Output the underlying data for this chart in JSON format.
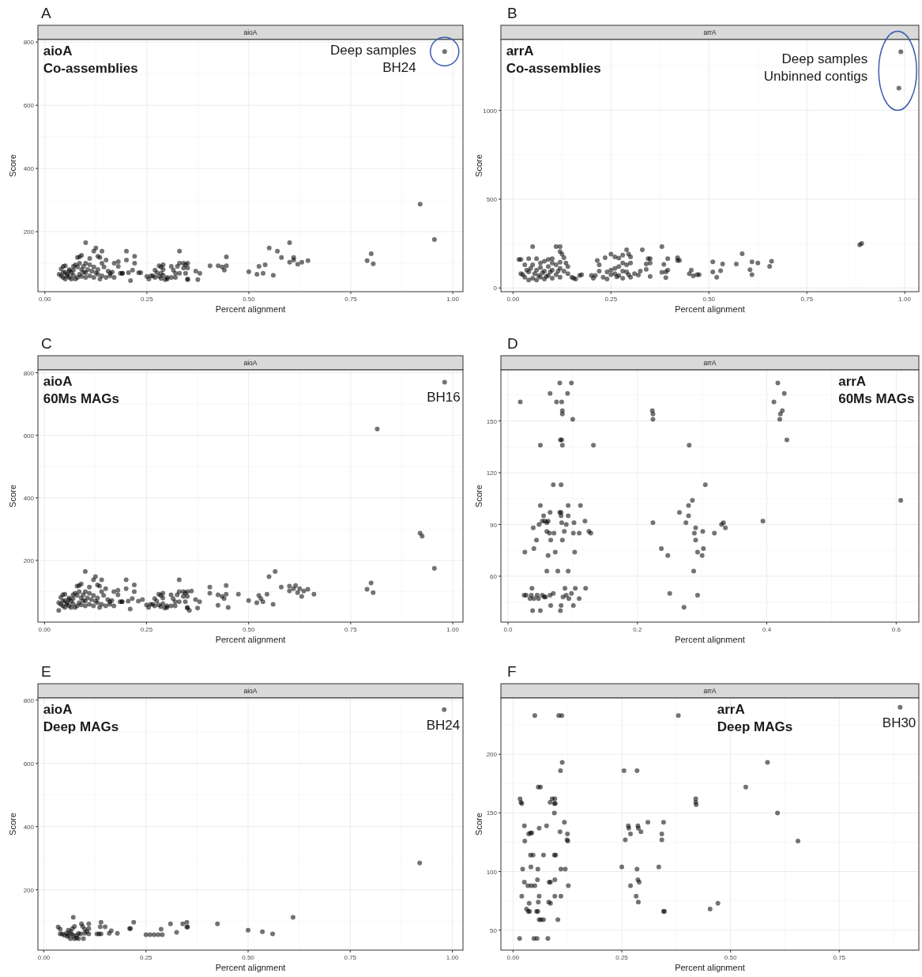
{
  "chart_data": [
    {
      "type": "scatter",
      "title": "A",
      "subtitle": "aioA",
      "xlabel": "Percent alignment",
      "ylabel": "Score",
      "color": "#000000",
      "marker": "circle",
      "grid": true,
      "xlim": [
        -0.017,
        1.025
      ],
      "ylim": [
        10,
        808
      ],
      "xticks": [
        {
          "value": 0,
          "label": "0.00"
        },
        {
          "value": 0.25,
          "label": "0.25"
        },
        {
          "value": 0.5,
          "label": "0.50"
        },
        {
          "value": 0.75,
          "label": "0.75"
        },
        {
          "value": 1,
          "label": "1.00"
        }
      ],
      "yticks": [
        200,
        400,
        600,
        800
      ],
      "annotations": [
        "aioA\nCo-assemblies",
        {
          "text": "Deep samples\nBH24",
          "x": 0.98,
          "y": 770
        }
      ],
      "x": [
        0.98,
        0.92,
        0.955,
        0.8,
        0.79,
        0.805,
        0.55,
        0.6,
        0.57,
        0.58,
        0.61,
        0.61,
        0.6,
        0.62,
        0.63,
        0.645,
        0.5,
        0.52,
        0.525,
        0.535,
        0.54,
        0.56,
        0.405,
        0.425,
        0.435,
        0.44,
        0.445,
        0.445,
        0.37,
        0.375,
        0.38,
        0.33,
        0.34,
        0.345,
        0.35,
        0.33,
        0.325,
        0.34,
        0.35,
        0.31,
        0.315,
        0.32,
        0.33,
        0.345,
        0.35,
        0.31,
        0.3,
        0.32,
        0.35,
        0.25,
        0.255,
        0.265,
        0.27,
        0.28,
        0.285,
        0.29,
        0.29,
        0.275,
        0.28,
        0.285,
        0.29,
        0.295,
        0.3,
        0.27,
        0.26,
        0.285,
        0.2,
        0.22,
        0.22,
        0.2,
        0.21,
        0.23,
        0.235,
        0.19,
        0.205,
        0.215,
        0.18,
        0.17,
        0.18,
        0.185,
        0.19,
        0.165,
        0.16,
        0.1,
        0.125,
        0.14,
        0.12,
        0.13,
        0.15,
        0.14,
        0.135,
        0.11,
        0.085,
        0.08,
        0.09,
        0.1,
        0.11,
        0.12,
        0.13,
        0.145,
        0.155,
        0.16,
        0.17,
        0.14,
        0.13,
        0.12,
        0.11,
        0.1,
        0.09,
        0.08,
        0.07,
        0.06,
        0.05,
        0.045,
        0.04,
        0.035,
        0.04,
        0.045,
        0.05,
        0.055,
        0.06,
        0.065,
        0.07,
        0.075,
        0.08,
        0.085,
        0.09,
        0.095,
        0.1,
        0.105,
        0.115,
        0.125,
        0.135,
        0.15,
        0.06,
        0.07,
        0.075,
        0.085,
        0.095,
        0.05,
        0.065,
        0.055,
        0.045
      ],
      "values": [
        770,
        287,
        175,
        130,
        108,
        98,
        148,
        165,
        138,
        118,
        118,
        110,
        103,
        97,
        103,
        108,
        73,
        65,
        90,
        68,
        95,
        62,
        92,
        92,
        88,
        78,
        92,
        120,
        75,
        48,
        68,
        138,
        100,
        95,
        100,
        100,
        90,
        85,
        85,
        90,
        78,
        68,
        68,
        68,
        50,
        55,
        50,
        55,
        48,
        58,
        50,
        60,
        78,
        92,
        88,
        80,
        95,
        70,
        58,
        52,
        62,
        48,
        55,
        55,
        60,
        68,
        138,
        122,
        100,
        110,
        45,
        70,
        70,
        68,
        70,
        78,
        105,
        100,
        90,
        68,
        68,
        72,
        60,
        165,
        148,
        138,
        138,
        122,
        110,
        100,
        118,
        115,
        120,
        118,
        125,
        100,
        95,
        88,
        80,
        88,
        75,
        68,
        55,
        60,
        65,
        55,
        60,
        70,
        80,
        88,
        90,
        80,
        92,
        90,
        82,
        65,
        60,
        55,
        50,
        65,
        55,
        70,
        62,
        50,
        55,
        65,
        58,
        72,
        55,
        80,
        75,
        70,
        50,
        55,
        75,
        78,
        95,
        100,
        90,
        72,
        50,
        60,
        70
      ]
    },
    {
      "type": "scatter",
      "title": "B",
      "subtitle": "arrA",
      "xlabel": "Percent alignment",
      "ylabel": "Score",
      "color": "#000000",
      "marker": "circle",
      "grid": true,
      "xlim": [
        -0.031,
        1.036
      ],
      "ylim": [
        -21,
        1399
      ],
      "xticks": [
        {
          "value": 0,
          "label": "0.00"
        },
        {
          "value": 0.25,
          "label": "0.25"
        },
        {
          "value": 0.5,
          "label": "0.50"
        },
        {
          "value": 0.75,
          "label": "0.75"
        },
        {
          "value": 1,
          "label": "1.00"
        }
      ],
      "yticks": [
        0,
        500,
        1000
      ],
      "annotations": [
        "arrA\nCo-assemblies",
        {
          "text": "Deep samples\nUnbinned contigs",
          "x": 0.99,
          "y": 1330
        }
      ],
      "x": [
        0.99,
        0.985,
        0.885,
        0.89,
        0.51,
        0.535,
        0.57,
        0.585,
        0.61,
        0.625,
        0.655,
        0.66,
        0.605,
        0.61,
        0.51,
        0.52,
        0.53,
        0.42,
        0.42,
        0.425,
        0.45,
        0.455,
        0.46,
        0.47,
        0.475,
        0.38,
        0.385,
        0.395,
        0.38,
        0.39,
        0.395,
        0.39,
        0.33,
        0.345,
        0.35,
        0.34,
        0.35,
        0.325,
        0.34,
        0.35,
        0.32,
        0.31,
        0.25,
        0.26,
        0.27,
        0.28,
        0.29,
        0.295,
        0.3,
        0.3,
        0.29,
        0.28,
        0.27,
        0.26,
        0.25,
        0.24,
        0.25,
        0.26,
        0.27,
        0.28,
        0.29,
        0.295,
        0.3,
        0.28,
        0.265,
        0.23,
        0.22,
        0.22,
        0.215,
        0.235,
        0.24,
        0.21,
        0.2,
        0.205,
        0.05,
        0.11,
        0.12,
        0.12,
        0.125,
        0.13,
        0.135,
        0.12,
        0.1,
        0.09,
        0.08,
        0.06,
        0.04,
        0.02,
        0.015,
        0.03,
        0.05,
        0.07,
        0.09,
        0.11,
        0.12,
        0.13,
        0.14,
        0.15,
        0.16,
        0.17,
        0.175,
        0.155,
        0.1,
        0.08,
        0.06,
        0.04,
        0.02,
        0.03,
        0.05,
        0.07,
        0.09,
        0.11,
        0.12,
        0.1,
        0.08,
        0.06,
        0.04,
        0.025,
        0.035,
        0.055,
        0.075,
        0.095,
        0.115,
        0.065,
        0.085,
        0.045,
        0.1,
        0.14,
        0.07
      ],
      "values": [
        1330,
        1125,
        243,
        250,
        147,
        135,
        135,
        193,
        147,
        140,
        122,
        150,
        103,
        75,
        90,
        60,
        97,
        170,
        155,
        155,
        80,
        100,
        68,
        75,
        75,
        233,
        133,
        165,
        88,
        90,
        100,
        58,
        215,
        165,
        165,
        135,
        140,
        95,
        105,
        65,
        72,
        80,
        190,
        175,
        168,
        185,
        215,
        190,
        175,
        140,
        130,
        140,
        120,
        110,
        100,
        90,
        75,
        80,
        70,
        95,
        90,
        75,
        60,
        55,
        62,
        60,
        95,
        130,
        155,
        170,
        50,
        70,
        70,
        55,
        233,
        233,
        233,
        205,
        190,
        170,
        140,
        145,
        165,
        160,
        150,
        165,
        165,
        160,
        160,
        130,
        130,
        140,
        120,
        130,
        110,
        95,
        80,
        60,
        50,
        70,
        75,
        55,
        100,
        95,
        100,
        90,
        80,
        60,
        55,
        60,
        70,
        75,
        60,
        55,
        50,
        45,
        45,
        75,
        100,
        80,
        85,
        90,
        95,
        70,
        65,
        110,
        140,
        120,
        115
      ]
    },
    {
      "type": "scatter",
      "title": "C",
      "subtitle": "aioA",
      "xlabel": "Percent alignment",
      "ylabel": "Score",
      "color": "#000000",
      "marker": "circle",
      "grid": true,
      "xlim": [
        -0.016,
        1.025
      ],
      "ylim": [
        3,
        809
      ],
      "xticks": [
        {
          "value": 0,
          "label": "0.00"
        },
        {
          "value": 0.25,
          "label": "0.25"
        },
        {
          "value": 0.5,
          "label": "0.50"
        },
        {
          "value": 0.75,
          "label": "0.75"
        },
        {
          "value": 1,
          "label": "1.00"
        }
      ],
      "yticks": [
        200,
        400,
        600,
        800
      ],
      "annotations": [
        "aioA\n60Ms MAGs",
        {
          "text": "BH16",
          "x": 0.98,
          "y": 770
        }
      ],
      "x": [
        0.98,
        0.815,
        0.92,
        0.925,
        0.955,
        0.8,
        0.79,
        0.805,
        0.55,
        0.565,
        0.58,
        0.6,
        0.6,
        0.615,
        0.61,
        0.62,
        0.625,
        0.63,
        0.635,
        0.645,
        0.66,
        0.475,
        0.5,
        0.52,
        0.525,
        0.53,
        0.535,
        0.545,
        0.56,
        0.405,
        0.405,
        0.425,
        0.425,
        0.435,
        0.44,
        0.445,
        0.445,
        0.45,
        0.37,
        0.375,
        0.38,
        0.36,
        0.355,
        0.33,
        0.34,
        0.345,
        0.35,
        0.33,
        0.325,
        0.34,
        0.35,
        0.31,
        0.315,
        0.32,
        0.33,
        0.345,
        0.35,
        0.31,
        0.3,
        0.32,
        0.35,
        0.25,
        0.255,
        0.265,
        0.27,
        0.28,
        0.285,
        0.29,
        0.29,
        0.275,
        0.28,
        0.285,
        0.29,
        0.295,
        0.3,
        0.27,
        0.26,
        0.24,
        0.2,
        0.22,
        0.22,
        0.2,
        0.21,
        0.23,
        0.19,
        0.205,
        0.215,
        0.18,
        0.17,
        0.18,
        0.185,
        0.19,
        0.165,
        0.16,
        0.1,
        0.125,
        0.14,
        0.12,
        0.13,
        0.15,
        0.14,
        0.135,
        0.11,
        0.085,
        0.08,
        0.09,
        0.1,
        0.11,
        0.12,
        0.13,
        0.145,
        0.155,
        0.16,
        0.17,
        0.14,
        0.13,
        0.12,
        0.11,
        0.1,
        0.09,
        0.08,
        0.07,
        0.06,
        0.05,
        0.045,
        0.04,
        0.035,
        0.04,
        0.045,
        0.05,
        0.055,
        0.06,
        0.065,
        0.07,
        0.075,
        0.08,
        0.085,
        0.09,
        0.095,
        0.1,
        0.105,
        0.115,
        0.125,
        0.135,
        0.15,
        0.06,
        0.07,
        0.075,
        0.085,
        0.095,
        0.05,
        0.065,
        0.055,
        0.045,
        0.035
      ],
      "values": [
        770,
        620,
        287,
        278,
        175,
        128,
        108,
        97,
        148,
        165,
        115,
        103,
        118,
        120,
        110,
        97,
        110,
        85,
        102,
        108,
        92,
        92,
        72,
        65,
        88,
        78,
        68,
        92,
        60,
        115,
        95,
        90,
        57,
        85,
        78,
        92,
        120,
        50,
        75,
        48,
        68,
        102,
        40,
        138,
        100,
        95,
        100,
        100,
        90,
        85,
        85,
        90,
        78,
        68,
        68,
        68,
        50,
        55,
        50,
        55,
        48,
        58,
        50,
        60,
        78,
        92,
        88,
        80,
        95,
        70,
        58,
        52,
        62,
        48,
        55,
        55,
        60,
        75,
        138,
        122,
        100,
        110,
        45,
        70,
        68,
        70,
        78,
        105,
        100,
        90,
        68,
        68,
        72,
        60,
        165,
        148,
        138,
        138,
        122,
        110,
        100,
        118,
        115,
        120,
        118,
        125,
        100,
        95,
        88,
        80,
        88,
        75,
        68,
        55,
        60,
        65,
        55,
        60,
        70,
        80,
        88,
        90,
        80,
        92,
        90,
        82,
        65,
        60,
        55,
        50,
        65,
        55,
        70,
        62,
        50,
        55,
        65,
        58,
        72,
        55,
        80,
        75,
        70,
        50,
        55,
        75,
        78,
        95,
        100,
        90,
        72,
        50,
        60,
        70,
        40
      ]
    },
    {
      "type": "scatter",
      "title": "D",
      "subtitle": "arrA",
      "xlabel": "Percent alignment",
      "ylabel": "Score",
      "color": "#000000",
      "marker": "circle",
      "grid": true,
      "xlim": [
        -0.011,
        0.635
      ],
      "ylim": [
        33.4,
        179.6
      ],
      "xticks": [
        {
          "value": 0,
          "label": "0.0"
        },
        {
          "value": 0.2,
          "label": "0.2"
        },
        {
          "value": 0.4,
          "label": "0.4"
        },
        {
          "value": 0.6,
          "label": "0.6"
        }
      ],
      "yticks": [
        60,
        90,
        120,
        150
      ],
      "annotations": [
        "arrA\n60Ms MAGs"
      ],
      "x": [
        0.019,
        0.08,
        0.098,
        0.065,
        0.092,
        0.075,
        0.083,
        0.084,
        0.084,
        0.1,
        0.05,
        0.081,
        0.083,
        0.084,
        0.132,
        0.07,
        0.082,
        0.05,
        0.093,
        0.112,
        0.065,
        0.08,
        0.082,
        0.055,
        0.082,
        0.093,
        0.053,
        0.057,
        0.062,
        0.048,
        0.06,
        0.083,
        0.09,
        0.102,
        0.119,
        0.039,
        0.06,
        0.064,
        0.071,
        0.087,
        0.101,
        0.11,
        0.125,
        0.128,
        0.044,
        0.066,
        0.084,
        0.026,
        0.04,
        0.062,
        0.073,
        0.103,
        0.06,
        0.077,
        0.093,
        0.037,
        0.088,
        0.104,
        0.12,
        0.025,
        0.028,
        0.036,
        0.045,
        0.053,
        0.065,
        0.07,
        0.098,
        0.034,
        0.04,
        0.047,
        0.056,
        0.058,
        0.085,
        0.09,
        0.094,
        0.11,
        0.066,
        0.082,
        0.101,
        0.038,
        0.05,
        0.081,
        0.223,
        0.224,
        0.224,
        0.28,
        0.305,
        0.285,
        0.279,
        0.265,
        0.279,
        0.224,
        0.275,
        0.333,
        0.33,
        0.29,
        0.336,
        0.301,
        0.288,
        0.319,
        0.29,
        0.237,
        0.302,
        0.247,
        0.3,
        0.293,
        0.287,
        0.25,
        0.293,
        0.272,
        0.417,
        0.427,
        0.411,
        0.424,
        0.421,
        0.42,
        0.431,
        0.394,
        0.607
      ],
      "values": [
        161,
        172,
        172,
        166,
        166,
        161,
        161,
        156,
        154,
        151,
        136,
        139,
        139,
        136,
        136,
        113,
        113,
        101,
        101,
        101,
        97,
        97,
        97,
        95,
        95,
        95,
        92,
        92,
        92,
        90,
        91,
        91,
        90,
        91,
        92,
        88,
        86,
        85,
        85,
        86,
        85,
        85,
        86,
        85,
        81,
        81,
        81,
        74,
        76,
        72,
        74,
        74,
        63,
        63,
        63,
        53,
        53,
        53,
        53,
        49,
        49,
        49,
        49,
        49,
        49,
        50,
        50,
        47,
        47,
        47,
        48,
        48,
        48,
        49,
        47,
        47,
        43,
        43,
        43,
        40,
        40,
        40,
        156,
        154,
        151,
        136,
        113,
        104,
        101,
        97,
        95,
        91,
        91,
        91,
        90,
        88,
        88,
        86,
        85,
        85,
        81,
        76,
        76,
        72,
        72,
        74,
        63,
        50,
        49,
        42,
        172,
        166,
        161,
        156,
        154,
        151,
        139,
        92,
        104
      ]
    },
    {
      "type": "scatter",
      "title": "E",
      "subtitle": "aioA",
      "xlabel": "Percent alignment",
      "ylabel": "Score",
      "color": "#000000",
      "marker": "circle",
      "grid": true,
      "xlim": [
        -0.0145,
        1.026
      ],
      "ylim": [
        9,
        807
      ],
      "xticks": [
        {
          "value": 0,
          "label": "0.00"
        },
        {
          "value": 0.25,
          "label": "0.25"
        },
        {
          "value": 0.5,
          "label": "0.50"
        },
        {
          "value": 0.75,
          "label": "0.75"
        },
        {
          "value": 1,
          "label": "1.00"
        }
      ],
      "yticks": [
        200,
        400,
        600,
        800
      ],
      "annotations": [
        "aioA\nDeep MAGs",
        {
          "text": "BH24",
          "x": 0.98,
          "y": 770
        }
      ],
      "x": [
        0.98,
        0.92,
        0.61,
        0.072,
        0.425,
        0.5,
        0.535,
        0.56,
        0.35,
        0.35,
        0.352,
        0.34,
        0.31,
        0.325,
        0.287,
        0.29,
        0.28,
        0.27,
        0.26,
        0.25,
        0.22,
        0.21,
        0.212,
        0.18,
        0.165,
        0.16,
        0.15,
        0.14,
        0.138,
        0.14,
        0.13,
        0.135,
        0.11,
        0.11,
        0.105,
        0.1,
        0.11,
        0.095,
        0.092,
        0.09,
        0.085,
        0.08,
        0.075,
        0.07,
        0.065,
        0.06,
        0.055,
        0.05,
        0.045,
        0.04,
        0.035,
        0.04,
        0.06,
        0.065,
        0.075,
        0.08,
        0.085,
        0.097,
        0.072,
        0.058,
        0.068,
        0.1
      ],
      "values": [
        770,
        285,
        113,
        113,
        92,
        72,
        67,
        60,
        97,
        82,
        82,
        92,
        92,
        65,
        75,
        58,
        58,
        58,
        58,
        58,
        97,
        77,
        77,
        62,
        70,
        62,
        83,
        97,
        83,
        60,
        60,
        60,
        92,
        77,
        68,
        62,
        60,
        84,
        92,
        60,
        62,
        56,
        84,
        77,
        68,
        72,
        62,
        56,
        60,
        75,
        82,
        60,
        57,
        45,
        45,
        48,
        45,
        45,
        55,
        52,
        60,
        75
      ]
    },
    {
      "type": "scatter",
      "title": "F",
      "subtitle": "arrA",
      "xlabel": "Percent alignment",
      "ylabel": "Score",
      "color": "#000000",
      "marker": "circle",
      "grid": true,
      "xlim": [
        -0.028,
        0.933
      ],
      "ylim": [
        33,
        248
      ],
      "xticks": [
        {
          "value": 0,
          "label": "0.00"
        },
        {
          "value": 0.25,
          "label": "0.25"
        },
        {
          "value": 0.5,
          "label": "0.50"
        },
        {
          "value": 0.75,
          "label": "0.75"
        }
      ],
      "yticks": [
        50,
        100,
        150,
        200
      ],
      "annotations": [
        "arrA\nDeep MAGs",
        {
          "text": "BH30",
          "x": 0.89,
          "y": 240
        }
      ],
      "x": [
        0.05,
        0.105,
        0.112,
        0.38,
        0.89,
        0.113,
        0.109,
        0.255,
        0.285,
        0.585,
        0.535,
        0.058,
        0.063,
        0.016,
        0.018,
        0.02,
        0.09,
        0.096,
        0.085,
        0.095,
        0.097,
        0.42,
        0.42,
        0.421,
        0.608,
        0.095,
        0.026,
        0.06,
        0.077,
        0.118,
        0.036,
        0.04,
        0.043,
        0.108,
        0.125,
        0.124,
        0.126,
        0.027,
        0.265,
        0.266,
        0.27,
        0.287,
        0.288,
        0.294,
        0.31,
        0.346,
        0.342,
        0.342,
        0.258,
        0.655,
        0.04,
        0.046,
        0.07,
        0.095,
        0.098,
        0.022,
        0.041,
        0.057,
        0.11,
        0.12,
        0.25,
        0.285,
        0.335,
        0.056,
        0.026,
        0.083,
        0.086,
        0.096,
        0.034,
        0.042,
        0.05,
        0.127,
        0.287,
        0.29,
        0.27,
        0.02,
        0.06,
        0.096,
        0.11,
        0.283,
        0.037,
        0.058,
        0.082,
        0.086,
        0.288,
        0.471,
        0.453,
        0.031,
        0.035,
        0.038,
        0.054,
        0.057,
        0.346,
        0.348,
        0.06,
        0.064,
        0.07,
        0.103,
        0.015,
        0.048,
        0.055,
        0.08
      ],
      "values": [
        233,
        233,
        233,
        233,
        240,
        193,
        186,
        186,
        186,
        193,
        172,
        172,
        172,
        162,
        159,
        158,
        162,
        162,
        159,
        158,
        158,
        162,
        159,
        157,
        150,
        150,
        139,
        137,
        139,
        142,
        132,
        133,
        133,
        134,
        132,
        127,
        126,
        126,
        139,
        137,
        132,
        139,
        137,
        134,
        142,
        142,
        132,
        127,
        127,
        126,
        114,
        114,
        114,
        114,
        114,
        102,
        104,
        102,
        102,
        102,
        104,
        102,
        104,
        93,
        91,
        91,
        91,
        93,
        88,
        88,
        88,
        88,
        93,
        91,
        88,
        79,
        79,
        79,
        79,
        79,
        73,
        74,
        74,
        73,
        74,
        73,
        68,
        68,
        66,
        66,
        66,
        66,
        66,
        66,
        59,
        59,
        59,
        59,
        43,
        43,
        43,
        43
      ]
    }
  ]
}
